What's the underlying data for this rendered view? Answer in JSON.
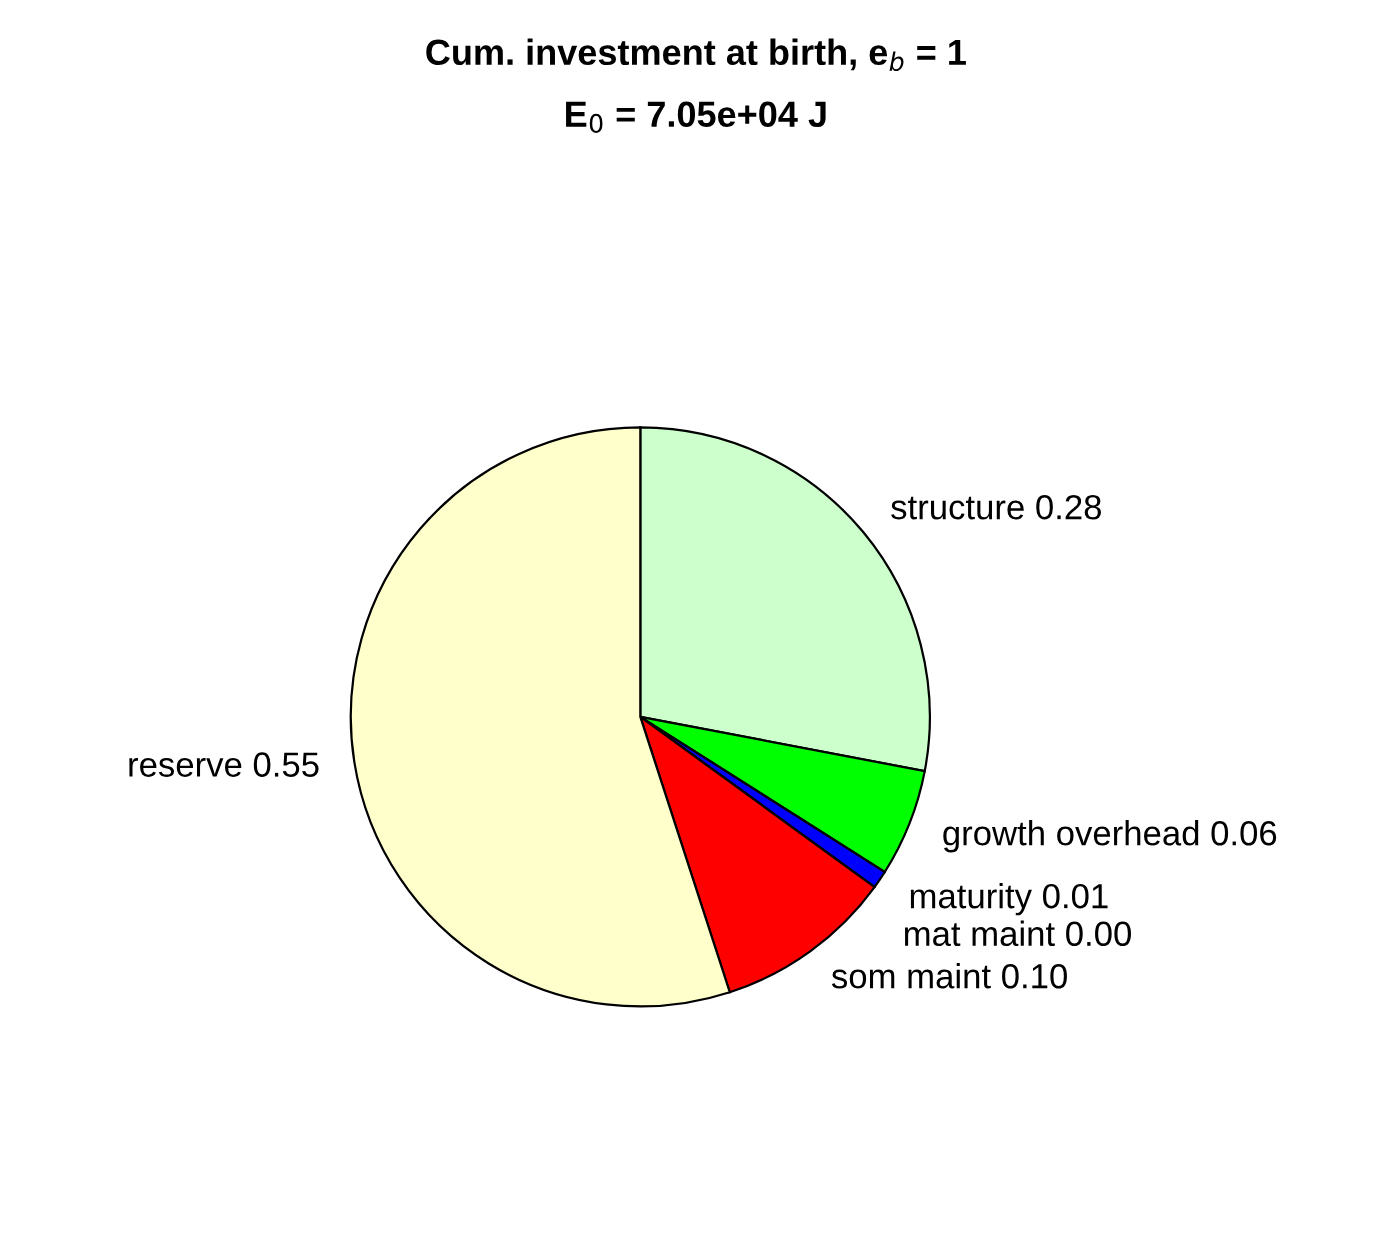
{
  "chart_data": {
    "type": "pie",
    "title": "Cum. investment at birth, e$_{b}$ = 1",
    "subtitle": "E$_{0}$ = 7.05e+04 J",
    "categories": [
      "structure",
      "growth overhead",
      "maturity",
      "mat maint",
      "som maint",
      "reserve"
    ],
    "values": [
      0.28,
      0.06,
      0.01,
      0.0,
      0.1,
      0.55
    ],
    "value_labels": [
      "0.28",
      "0.06",
      "0.01",
      "0.00",
      "0.10",
      "0.55"
    ],
    "colors": [
      "#ccffcc",
      "#00ff00",
      "#0000ff",
      "#000000",
      "#ff0000",
      "#ffffcc"
    ],
    "legend": false
  }
}
